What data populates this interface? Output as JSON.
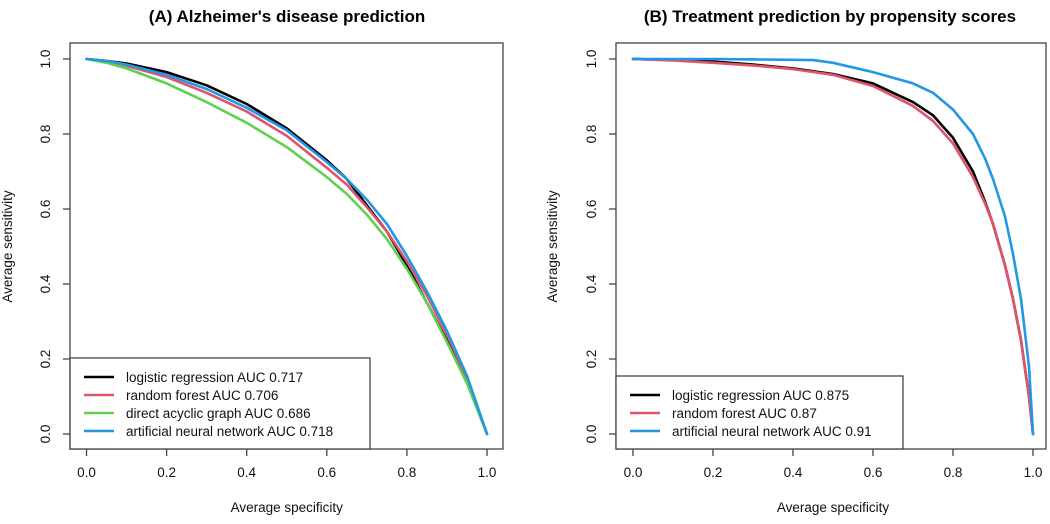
{
  "chart_data": [
    {
      "type": "line",
      "title": "(A) Alzheimer's disease prediction",
      "xlabel": "Average specificity",
      "ylabel": "Average sensitivity",
      "xlim": [
        0,
        1
      ],
      "ylim": [
        0,
        1
      ],
      "xticks": [
        "0.0",
        "0.2",
        "0.4",
        "0.6",
        "0.8",
        "1.0"
      ],
      "yticks": [
        "0.0",
        "0.2",
        "0.4",
        "0.6",
        "0.8",
        "1.0"
      ],
      "grid": false,
      "legend_position": "bottom-left",
      "series": [
        {
          "name": "logistic regression AUC 0.717",
          "color": "#000000",
          "x": [
            0.0,
            0.05,
            0.1,
            0.2,
            0.3,
            0.4,
            0.5,
            0.6,
            0.65,
            0.7,
            0.75,
            0.8,
            0.85,
            0.9,
            0.95,
            1.0
          ],
          "y": [
            1.0,
            0.995,
            0.988,
            0.965,
            0.93,
            0.88,
            0.815,
            0.73,
            0.68,
            0.61,
            0.54,
            0.45,
            0.35,
            0.25,
            0.14,
            0.0
          ]
        },
        {
          "name": "random forest AUC 0.706",
          "color": "#DF536B",
          "x": [
            0.0,
            0.05,
            0.1,
            0.2,
            0.3,
            0.4,
            0.5,
            0.6,
            0.65,
            0.7,
            0.75,
            0.8,
            0.85,
            0.9,
            0.95,
            1.0
          ],
          "y": [
            1.0,
            0.993,
            0.982,
            0.952,
            0.91,
            0.86,
            0.795,
            0.71,
            0.665,
            0.605,
            0.54,
            0.46,
            0.37,
            0.265,
            0.15,
            0.0
          ]
        },
        {
          "name": "direct acyclic graph AUC 0.686",
          "color": "#61D04F",
          "x": [
            0.0,
            0.05,
            0.1,
            0.2,
            0.3,
            0.4,
            0.5,
            0.6,
            0.65,
            0.7,
            0.75,
            0.8,
            0.85,
            0.9,
            0.95,
            1.0
          ],
          "y": [
            1.0,
            0.99,
            0.975,
            0.935,
            0.885,
            0.83,
            0.765,
            0.685,
            0.64,
            0.585,
            0.52,
            0.44,
            0.35,
            0.245,
            0.135,
            0.0
          ]
        },
        {
          "name": "artificial neural network AUC 0.718",
          "color": "#2297E6",
          "x": [
            0.0,
            0.05,
            0.1,
            0.2,
            0.3,
            0.4,
            0.5,
            0.6,
            0.65,
            0.7,
            0.75,
            0.8,
            0.85,
            0.9,
            0.95,
            1.0
          ],
          "y": [
            1.0,
            0.995,
            0.985,
            0.958,
            0.92,
            0.87,
            0.81,
            0.725,
            0.68,
            0.625,
            0.56,
            0.475,
            0.38,
            0.275,
            0.155,
            0.0
          ]
        }
      ]
    },
    {
      "type": "line",
      "title": "(B) Treatment prediction by propensity scores",
      "xlabel": "Average specificity",
      "ylabel": "Average sensitivity",
      "xlim": [
        0,
        1
      ],
      "ylim": [
        0,
        1
      ],
      "xticks": [
        "0.0",
        "0.2",
        "0.4",
        "0.6",
        "0.8",
        "1.0"
      ],
      "yticks": [
        "0.0",
        "0.2",
        "0.4",
        "0.6",
        "0.8",
        "1.0"
      ],
      "grid": false,
      "legend_position": "bottom-left",
      "series": [
        {
          "name": "logistic regression AUC 0.875",
          "color": "#000000",
          "x": [
            0.0,
            0.1,
            0.2,
            0.3,
            0.4,
            0.5,
            0.6,
            0.7,
            0.75,
            0.8,
            0.85,
            0.88,
            0.9,
            0.93,
            0.95,
            0.97,
            0.99,
            1.0
          ],
          "y": [
            1.0,
            0.998,
            0.993,
            0.985,
            0.975,
            0.96,
            0.935,
            0.885,
            0.85,
            0.79,
            0.7,
            0.62,
            0.56,
            0.45,
            0.36,
            0.25,
            0.1,
            0.0
          ]
        },
        {
          "name": "random forest AUC 0.87",
          "color": "#DF536B",
          "x": [
            0.0,
            0.1,
            0.2,
            0.3,
            0.4,
            0.5,
            0.6,
            0.7,
            0.75,
            0.8,
            0.85,
            0.88,
            0.9,
            0.93,
            0.95,
            0.97,
            0.99,
            1.0
          ],
          "y": [
            1.0,
            0.996,
            0.99,
            0.983,
            0.973,
            0.958,
            0.928,
            0.875,
            0.835,
            0.775,
            0.685,
            0.615,
            0.56,
            0.45,
            0.36,
            0.25,
            0.1,
            0.0
          ]
        },
        {
          "name": "artificial neural network AUC 0.91",
          "color": "#2297E6",
          "x": [
            0.0,
            0.1,
            0.2,
            0.3,
            0.4,
            0.45,
            0.5,
            0.6,
            0.7,
            0.75,
            0.8,
            0.85,
            0.88,
            0.9,
            0.93,
            0.95,
            0.97,
            0.99,
            1.0
          ],
          "y": [
            1.0,
            1.0,
            1.0,
            0.999,
            0.998,
            0.997,
            0.99,
            0.965,
            0.935,
            0.91,
            0.865,
            0.8,
            0.735,
            0.68,
            0.58,
            0.48,
            0.36,
            0.18,
            0.0
          ]
        }
      ]
    }
  ]
}
